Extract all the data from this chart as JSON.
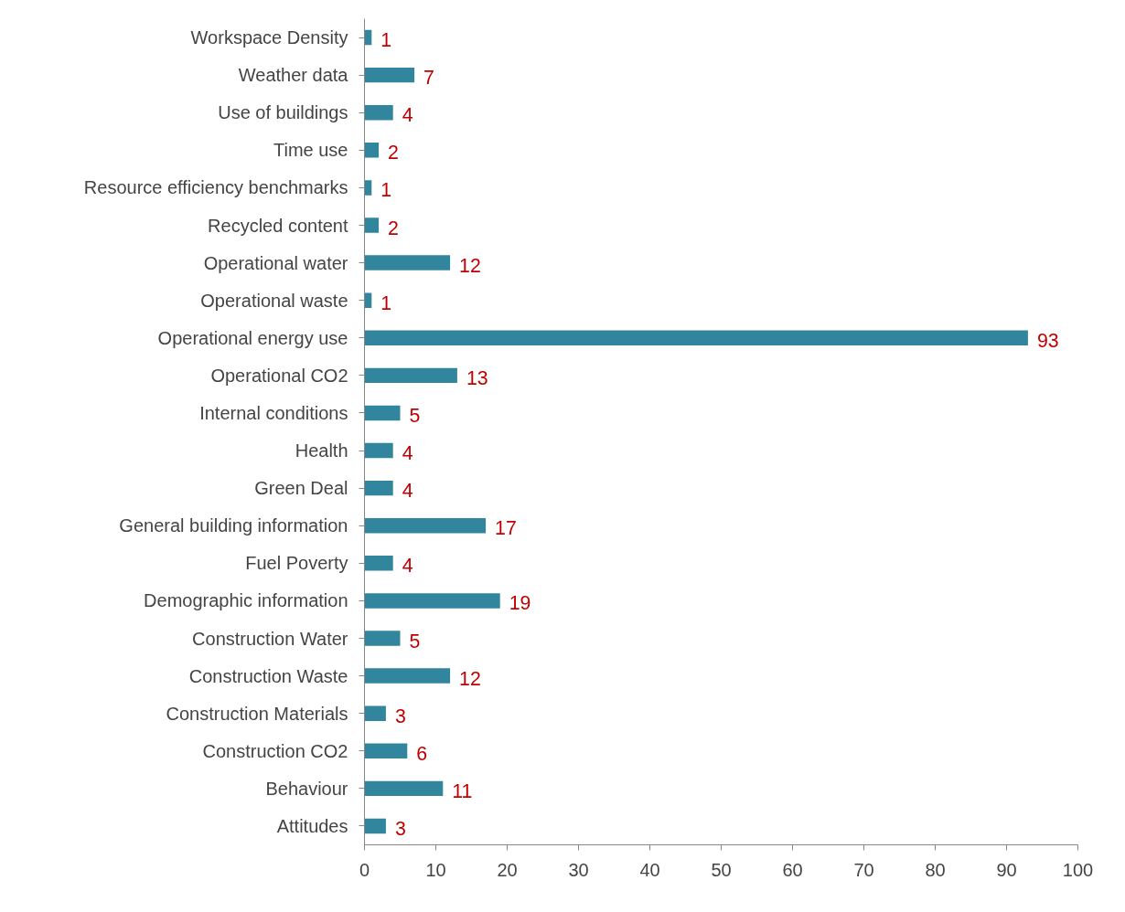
{
  "chart_data": {
    "type": "bar",
    "orientation": "horizontal",
    "categories": [
      "Workspace Density",
      "Weather data",
      "Use of buildings",
      "Time use",
      "Resource efficiency benchmarks",
      "Recycled content",
      "Operational water",
      "Operational waste",
      "Operational energy use",
      "Operational CO2",
      "Internal conditions",
      "Health",
      "Green Deal",
      "General building information",
      "Fuel Poverty",
      "Demographic information",
      "Construction Water",
      "Construction Waste",
      "Construction Materials",
      "Construction CO2",
      "Behaviour",
      "Attitudes"
    ],
    "values": [
      1,
      7,
      4,
      2,
      1,
      2,
      12,
      1,
      93,
      13,
      5,
      4,
      4,
      17,
      4,
      19,
      5,
      12,
      3,
      6,
      11,
      3
    ],
    "color": "#31859c",
    "xlim": [
      0,
      100
    ],
    "xticks": [
      0,
      10,
      20,
      30,
      40,
      50,
      60,
      70,
      80,
      90,
      100
    ],
    "data_labels": true,
    "grid": false
  }
}
